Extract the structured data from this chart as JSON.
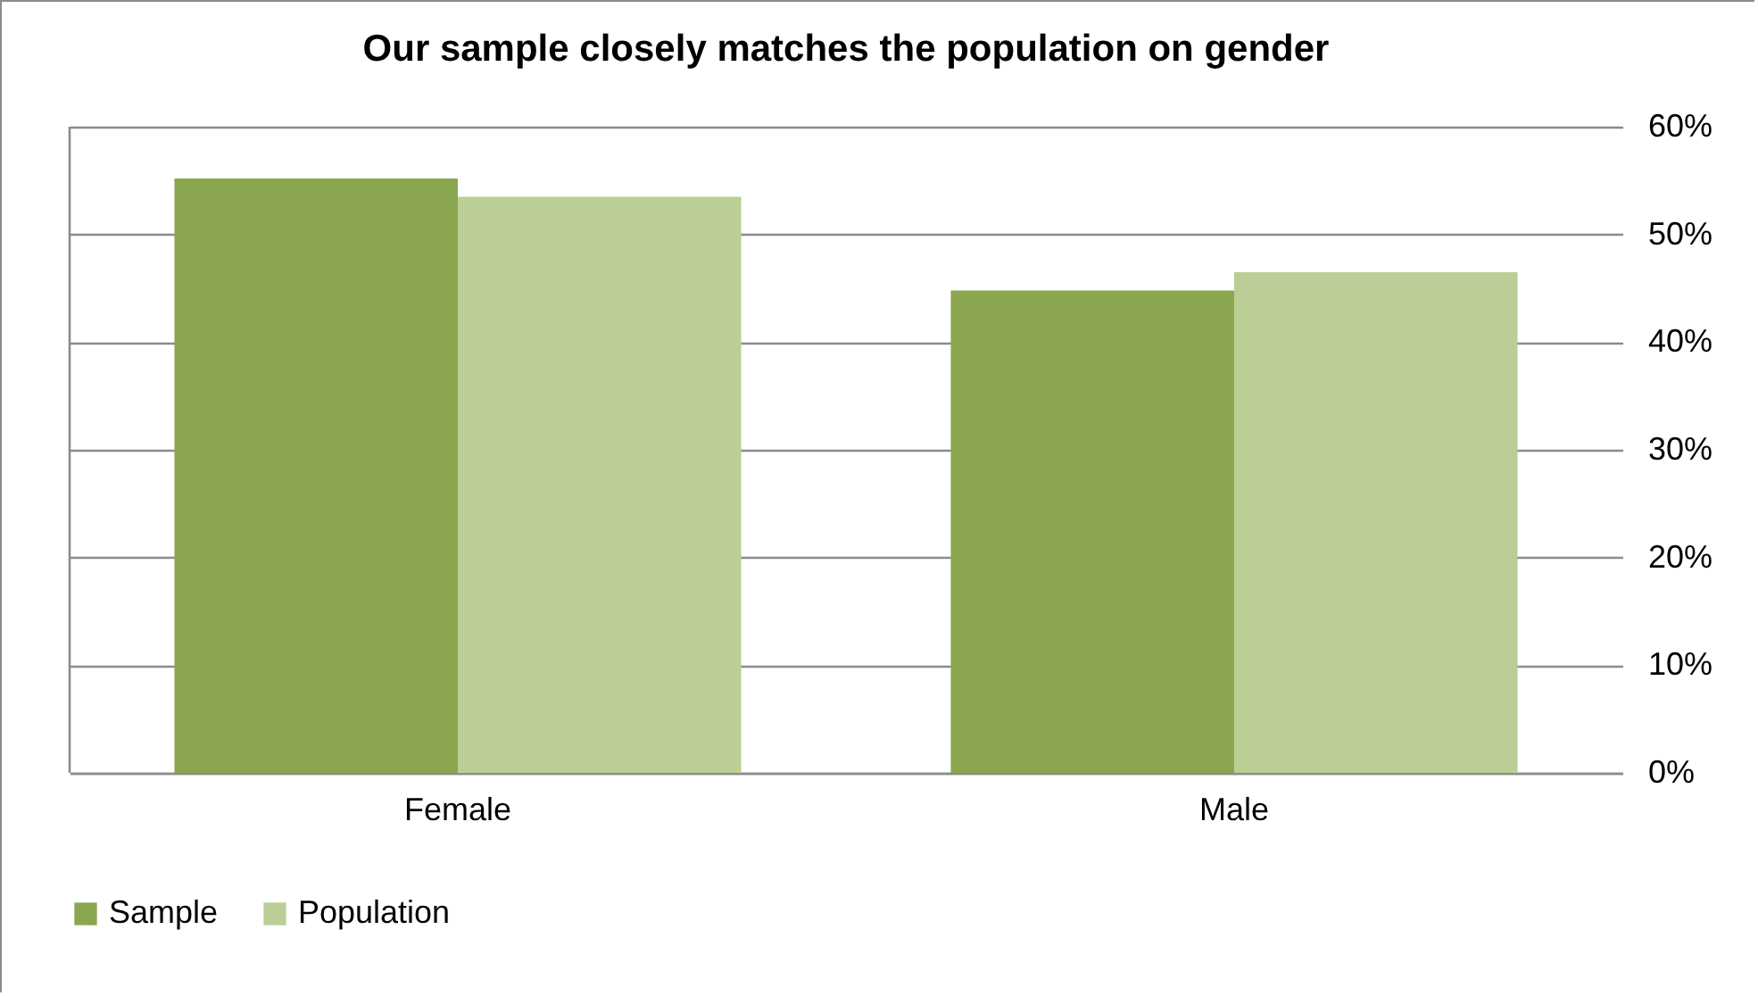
{
  "chart_data": {
    "type": "bar",
    "title": "Our sample closely matches the population on gender",
    "categories": [
      "Female",
      "Male"
    ],
    "series": [
      {
        "name": "Sample",
        "color": "#8aa64f",
        "values": [
          55.2,
          44.8
        ]
      },
      {
        "name": "Population",
        "color": "#bace96",
        "values": [
          53.5,
          46.5
        ]
      }
    ],
    "ylim": [
      0,
      60
    ],
    "yticks": [
      {
        "value": 0,
        "label": "0%"
      },
      {
        "value": 10,
        "label": "10%"
      },
      {
        "value": 20,
        "label": "20%"
      },
      {
        "value": 30,
        "label": "30%"
      },
      {
        "value": 40,
        "label": "40%"
      },
      {
        "value": 50,
        "label": "50%"
      },
      {
        "value": 60,
        "label": "60%"
      }
    ],
    "grid": "y",
    "legend": "bottom"
  }
}
